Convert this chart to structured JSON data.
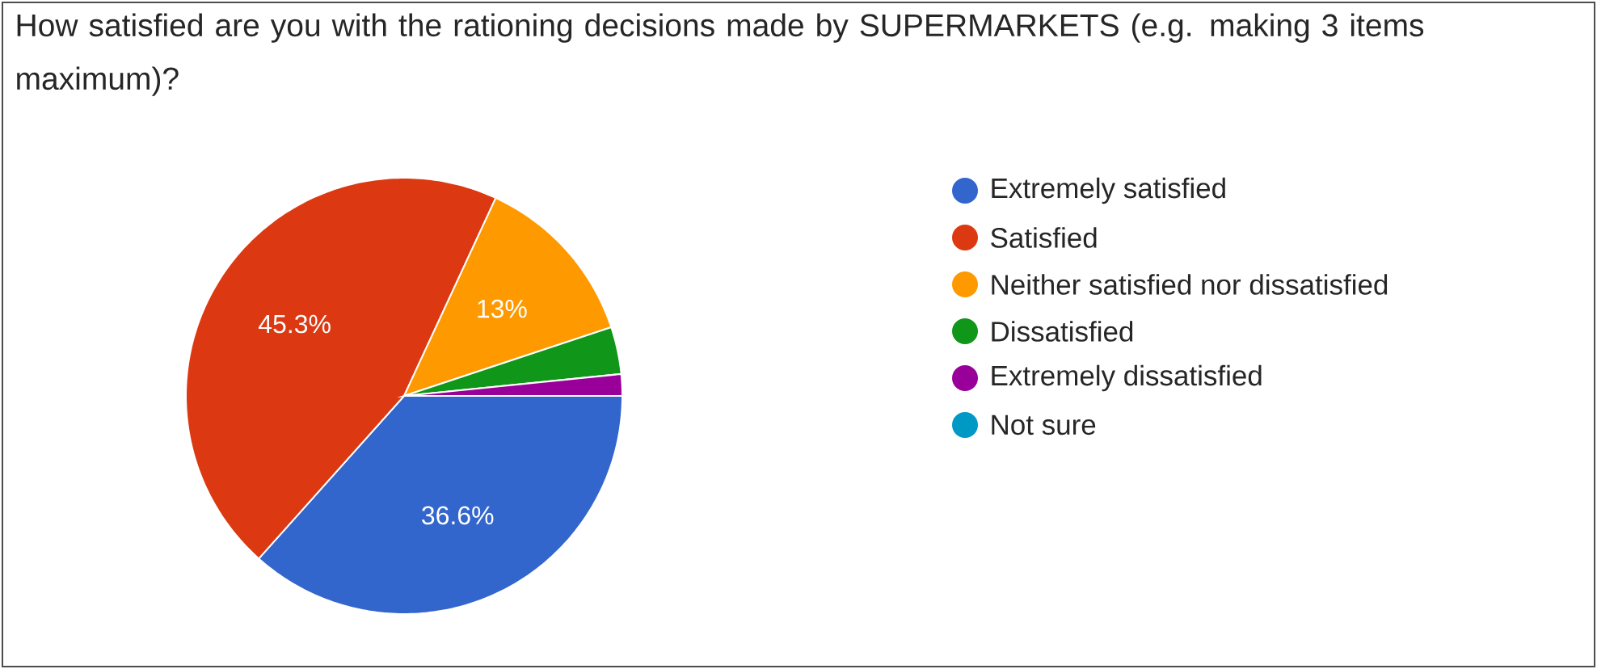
{
  "chart_data": {
    "type": "pie",
    "title": "How satisfied are you with the rationing decisions made by SUPERMARKETS (e.g. making 3 items maximum)?",
    "categories": [
      "Extremely satisfied",
      "Satisfied",
      "Neither satisfied nor dissatisfied",
      "Dissatisfied",
      "Extremely dissatisfied",
      "Not sure"
    ],
    "values": [
      36.6,
      45.3,
      13,
      3.5,
      1.6,
      0
    ],
    "colors": [
      "#3366cc",
      "#dc3912",
      "#ff9900",
      "#109618",
      "#990099",
      "#0099c6"
    ],
    "value_labels": [
      "36.6%",
      "45.3%",
      "13%",
      null,
      null,
      null
    ],
    "legend": "right"
  }
}
